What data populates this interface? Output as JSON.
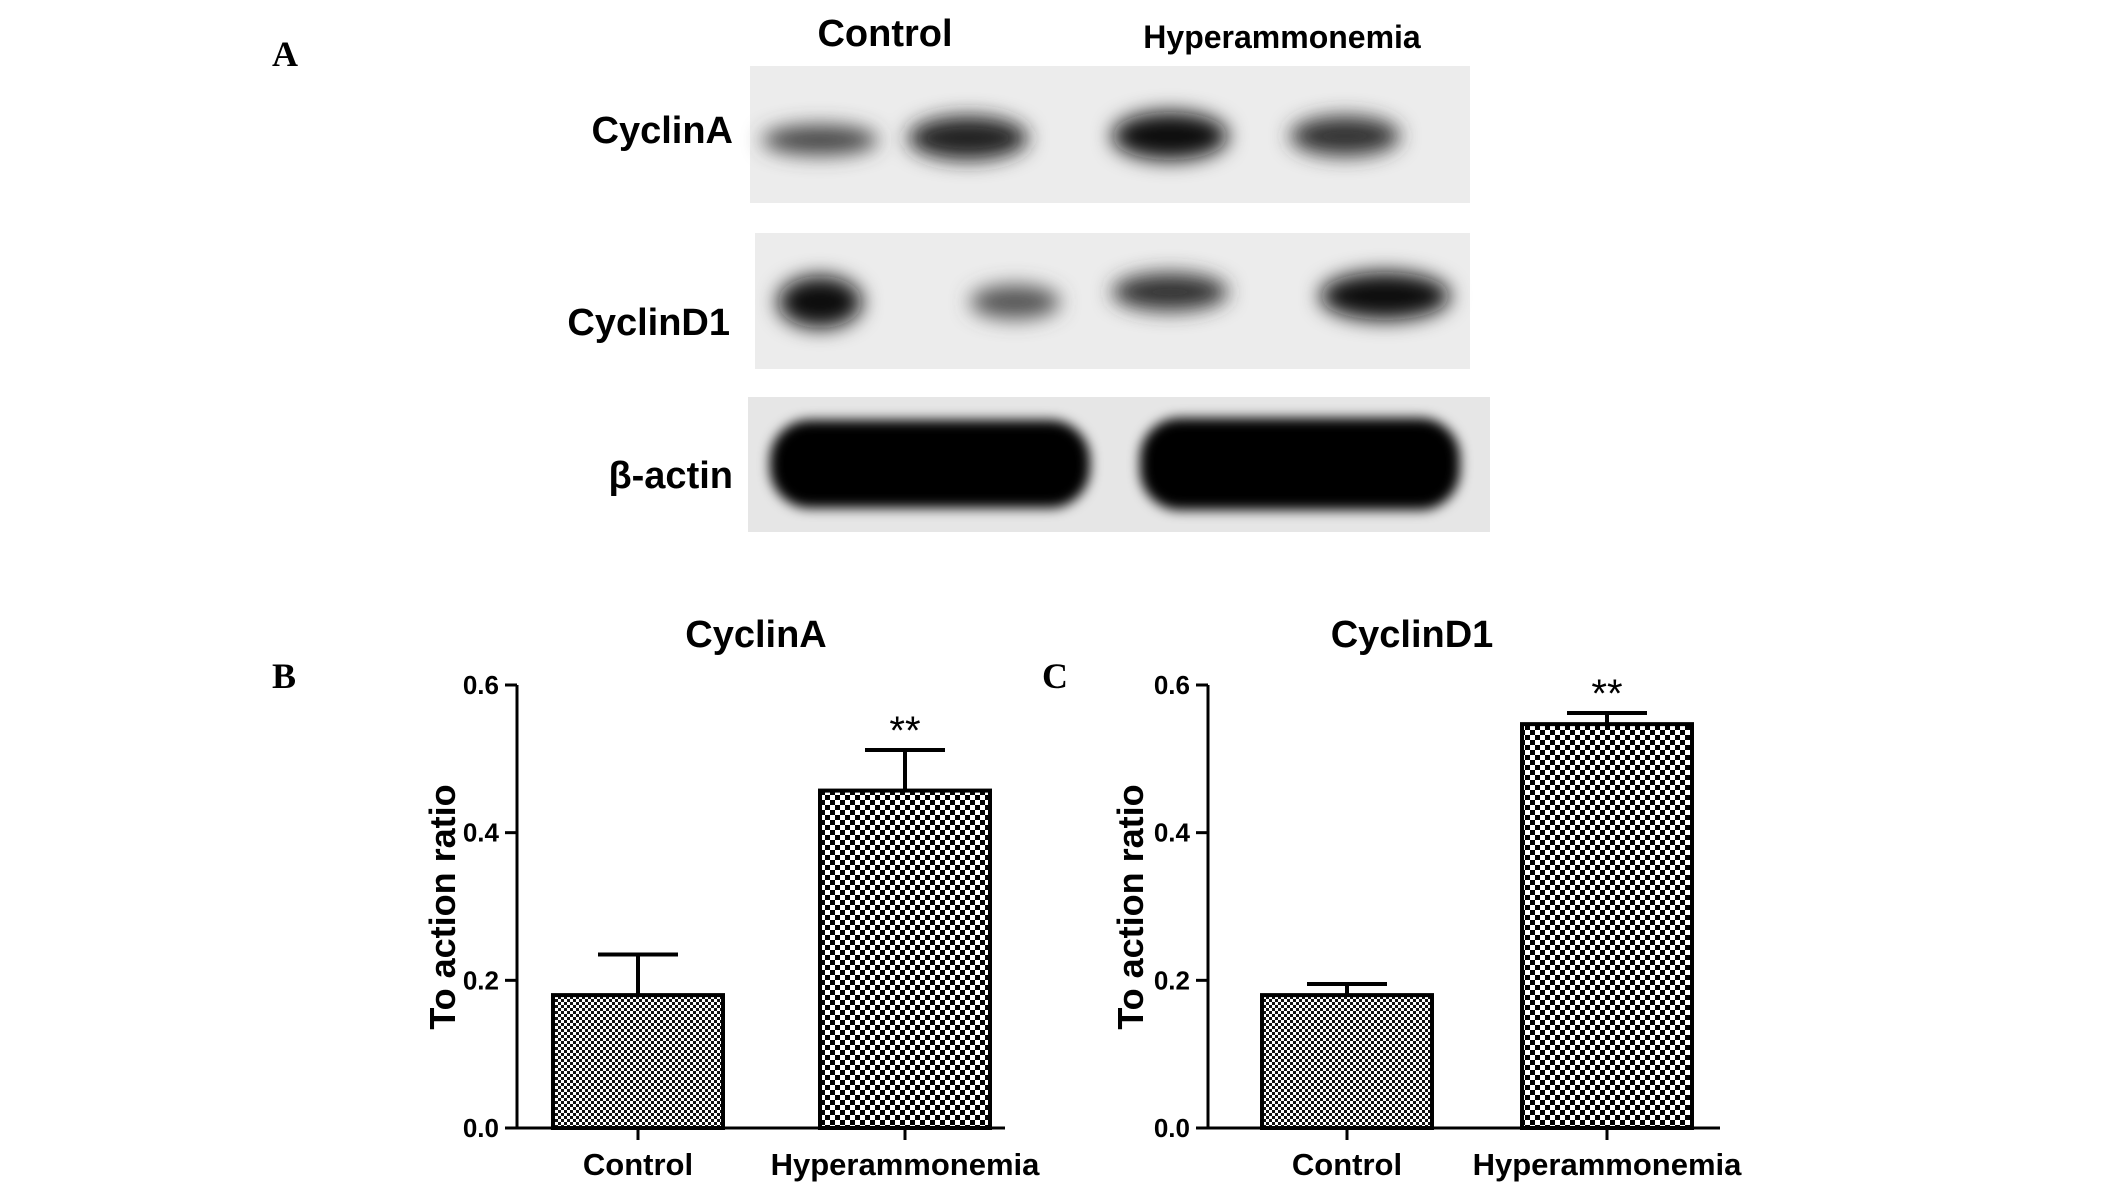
{
  "panel_a": {
    "letter": "A",
    "lane_labels": [
      "Control",
      "Hyperammonemia"
    ],
    "blots": [
      {
        "label": "CyclinA"
      },
      {
        "label": "CyclinD1"
      },
      {
        "label": "β-actin"
      }
    ]
  },
  "chart_data": [
    {
      "panel": "B",
      "type": "bar",
      "title": "CyclinA",
      "ylabel": "To action ratio",
      "xlabel": "",
      "categories": [
        "Control",
        "Hyperammonemia"
      ],
      "values": [
        0.18,
        0.457
      ],
      "errors": [
        0.055,
        0.055
      ],
      "significance": [
        "",
        "**"
      ],
      "ylim": [
        0.0,
        0.6
      ],
      "yticks": [
        "0.0",
        "0.2",
        "0.4",
        "0.6"
      ],
      "ytick_values": [
        0.0,
        0.2,
        0.4,
        0.6
      ],
      "grid": false
    },
    {
      "panel": "C",
      "type": "bar",
      "title": "CyclinD1",
      "ylabel": "To action ratio",
      "xlabel": "",
      "categories": [
        "Control",
        "Hyperammonemia"
      ],
      "values": [
        0.18,
        0.547
      ],
      "errors": [
        0.015,
        0.015
      ],
      "significance": [
        "",
        "**"
      ],
      "ylim": [
        0.0,
        0.6
      ],
      "yticks": [
        "0.0",
        "0.2",
        "0.4",
        "0.6"
      ],
      "ytick_values": [
        0.0,
        0.2,
        0.4,
        0.6
      ],
      "grid": false
    }
  ]
}
